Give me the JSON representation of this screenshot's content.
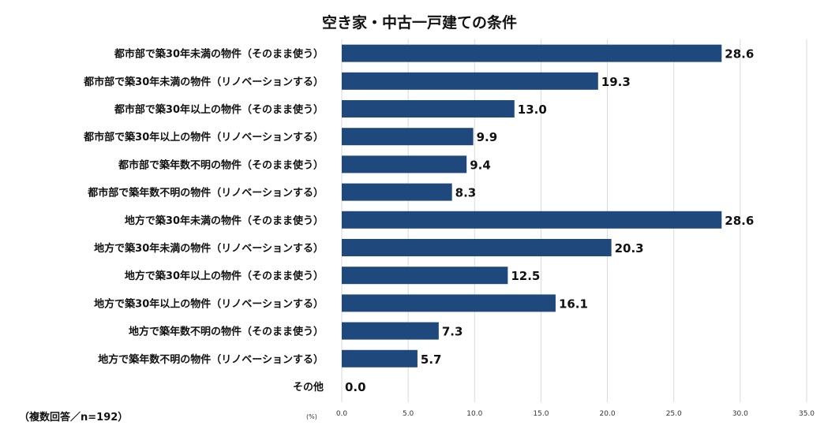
{
  "chart_data": {
    "type": "bar",
    "orientation": "horizontal",
    "title": "空き家・中古一戸建ての条件",
    "note": "（複数回答／n=192）",
    "unit_label": "(%)",
    "categories": [
      "都市部で築30年未満の物件（そのまま使う）",
      "都市部で築30年未満の物件（リノベーションする）",
      "都市部で築30年以上の物件（そのまま使う）",
      "都市部で築30年以上の物件（リノベーションする）",
      "都市部で築年数不明の物件（そのまま使う）",
      "都市部で築年数不明の物件（リノベーションする）",
      "地方で築30年未満の物件（そのまま使う）",
      "地方で築30年未満の物件（リノベーションする）",
      "地方で築30年以上の物件（そのまま使う）",
      "地方で築30年以上の物件（リノベーションする）",
      "地方で築年数不明の物件（そのまま使う）",
      "地方で築年数不明の物件（リノベーションする）",
      "その他"
    ],
    "values": [
      28.6,
      19.3,
      13.0,
      9.9,
      9.4,
      8.3,
      28.6,
      20.3,
      12.5,
      16.1,
      7.3,
      5.7,
      0.0
    ],
    "value_labels": [
      "28.6",
      "19.3",
      "13.0",
      "9.9",
      "9.4",
      "8.3",
      "28.6",
      "20.3",
      "12.5",
      "16.1",
      "7.3",
      "5.7",
      "0.0"
    ],
    "xlim": [
      0,
      35
    ],
    "xticks": [
      "0.0",
      "5.0",
      "10.0",
      "15.0",
      "20.0",
      "25.0",
      "30.0",
      "35.0"
    ],
    "xtick_values": [
      0,
      5,
      10,
      15,
      20,
      25,
      30,
      35
    ],
    "grid": true,
    "bar_color": "#1f497d"
  }
}
